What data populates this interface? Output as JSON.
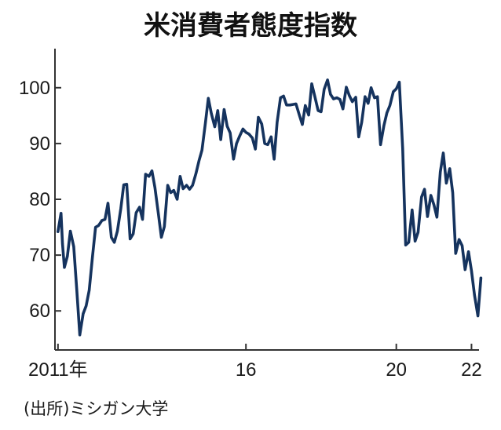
{
  "chart_data": {
    "type": "line",
    "title": "米消費者態度指数",
    "source": "(出所)ミシガン大学",
    "xlabel": "",
    "ylabel": "",
    "xlim": [
      2010.92,
      2022.2
    ],
    "ylim": [
      53,
      107
    ],
    "yticks": [
      60,
      70,
      80,
      90,
      100
    ],
    "xticks": [
      {
        "value": 2011.0,
        "label": "2011年"
      },
      {
        "value": 2016.0,
        "label": "16"
      },
      {
        "value": 2020.0,
        "label": "20"
      },
      {
        "value": 2022.0,
        "label": "22"
      }
    ],
    "series": [
      {
        "color": "#15335e",
        "points": [
          [
            2011.0,
            74.2
          ],
          [
            2011.08,
            77.5
          ],
          [
            2011.12,
            72.0
          ],
          [
            2011.17,
            67.8
          ],
          [
            2011.25,
            69.8
          ],
          [
            2011.33,
            74.3
          ],
          [
            2011.42,
            71.5
          ],
          [
            2011.5,
            63.7
          ],
          [
            2011.58,
            55.7
          ],
          [
            2011.67,
            59.5
          ],
          [
            2011.75,
            60.9
          ],
          [
            2011.83,
            63.7
          ],
          [
            2011.92,
            69.9
          ],
          [
            2012.0,
            75.0
          ],
          [
            2012.08,
            75.3
          ],
          [
            2012.17,
            76.2
          ],
          [
            2012.25,
            76.4
          ],
          [
            2012.33,
            79.3
          ],
          [
            2012.42,
            73.2
          ],
          [
            2012.5,
            72.3
          ],
          [
            2012.58,
            74.3
          ],
          [
            2012.67,
            78.3
          ],
          [
            2012.75,
            82.6
          ],
          [
            2012.83,
            82.7
          ],
          [
            2012.92,
            72.9
          ],
          [
            2013.0,
            73.8
          ],
          [
            2013.08,
            77.6
          ],
          [
            2013.17,
            78.6
          ],
          [
            2013.25,
            76.4
          ],
          [
            2013.33,
            84.5
          ],
          [
            2013.42,
            84.1
          ],
          [
            2013.5,
            85.1
          ],
          [
            2013.58,
            82.1
          ],
          [
            2013.67,
            77.5
          ],
          [
            2013.75,
            73.2
          ],
          [
            2013.83,
            75.1
          ],
          [
            2013.92,
            82.5
          ],
          [
            2014.0,
            81.2
          ],
          [
            2014.08,
            81.6
          ],
          [
            2014.17,
            80.0
          ],
          [
            2014.25,
            84.1
          ],
          [
            2014.33,
            81.9
          ],
          [
            2014.42,
            82.5
          ],
          [
            2014.5,
            81.8
          ],
          [
            2014.58,
            82.5
          ],
          [
            2014.67,
            84.6
          ],
          [
            2014.75,
            86.9
          ],
          [
            2014.83,
            88.8
          ],
          [
            2014.92,
            93.6
          ],
          [
            2015.0,
            98.1
          ],
          [
            2015.08,
            95.4
          ],
          [
            2015.17,
            93.0
          ],
          [
            2015.25,
            95.9
          ],
          [
            2015.33,
            90.7
          ],
          [
            2015.42,
            96.1
          ],
          [
            2015.5,
            93.1
          ],
          [
            2015.58,
            91.9
          ],
          [
            2015.67,
            87.2
          ],
          [
            2015.75,
            90.0
          ],
          [
            2015.83,
            91.3
          ],
          [
            2015.92,
            92.6
          ],
          [
            2016.0,
            92.0
          ],
          [
            2016.08,
            91.7
          ],
          [
            2016.17,
            91.0
          ],
          [
            2016.25,
            89.0
          ],
          [
            2016.33,
            94.7
          ],
          [
            2016.42,
            93.5
          ],
          [
            2016.5,
            90.0
          ],
          [
            2016.58,
            89.8
          ],
          [
            2016.67,
            91.2
          ],
          [
            2016.75,
            87.2
          ],
          [
            2016.83,
            93.8
          ],
          [
            2016.92,
            98.2
          ],
          [
            2017.0,
            98.5
          ],
          [
            2017.08,
            96.9
          ],
          [
            2017.17,
            96.9
          ],
          [
            2017.25,
            97.0
          ],
          [
            2017.33,
            97.1
          ],
          [
            2017.42,
            95.1
          ],
          [
            2017.5,
            93.4
          ],
          [
            2017.58,
            96.8
          ],
          [
            2017.67,
            95.1
          ],
          [
            2017.75,
            100.7
          ],
          [
            2017.83,
            98.5
          ],
          [
            2017.92,
            95.9
          ],
          [
            2018.0,
            95.7
          ],
          [
            2018.08,
            99.7
          ],
          [
            2018.17,
            101.4
          ],
          [
            2018.25,
            98.8
          ],
          [
            2018.33,
            98.0
          ],
          [
            2018.42,
            98.2
          ],
          [
            2018.5,
            97.9
          ],
          [
            2018.58,
            96.2
          ],
          [
            2018.67,
            100.1
          ],
          [
            2018.75,
            98.6
          ],
          [
            2018.83,
            97.5
          ],
          [
            2018.92,
            98.3
          ],
          [
            2019.0,
            91.2
          ],
          [
            2019.08,
            93.8
          ],
          [
            2019.17,
            98.4
          ],
          [
            2019.25,
            97.2
          ],
          [
            2019.33,
            100.0
          ],
          [
            2019.42,
            98.2
          ],
          [
            2019.5,
            98.4
          ],
          [
            2019.58,
            89.8
          ],
          [
            2019.67,
            93.2
          ],
          [
            2019.75,
            95.5
          ],
          [
            2019.83,
            96.8
          ],
          [
            2019.92,
            99.3
          ],
          [
            2020.0,
            99.8
          ],
          [
            2020.08,
            101.0
          ],
          [
            2020.17,
            89.1
          ],
          [
            2020.25,
            71.8
          ],
          [
            2020.33,
            72.3
          ],
          [
            2020.42,
            78.1
          ],
          [
            2020.5,
            72.5
          ],
          [
            2020.58,
            74.1
          ],
          [
            2020.67,
            80.4
          ],
          [
            2020.75,
            81.8
          ],
          [
            2020.83,
            76.9
          ],
          [
            2020.92,
            80.7
          ],
          [
            2021.0,
            79.0
          ],
          [
            2021.08,
            76.8
          ],
          [
            2021.17,
            84.9
          ],
          [
            2021.25,
            88.3
          ],
          [
            2021.33,
            82.9
          ],
          [
            2021.42,
            85.5
          ],
          [
            2021.5,
            81.2
          ],
          [
            2021.58,
            70.3
          ],
          [
            2021.67,
            72.8
          ],
          [
            2021.75,
            71.7
          ],
          [
            2021.83,
            67.4
          ],
          [
            2021.92,
            70.6
          ],
          [
            2022.0,
            67.2
          ],
          [
            2022.08,
            62.8
          ],
          [
            2022.17,
            59.1
          ],
          [
            2022.25,
            65.9
          ]
        ]
      }
    ]
  }
}
